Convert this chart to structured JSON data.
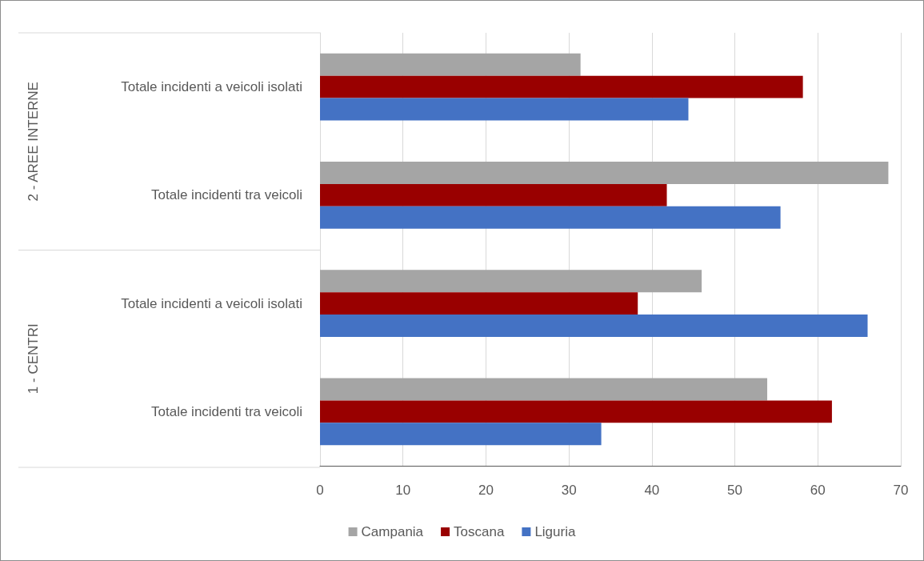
{
  "chart_data": {
    "type": "bar",
    "orientation": "horizontal",
    "categories": [
      "Totale incidenti a veicoli isolati",
      "Totale incidenti tra veicoli",
      "Totale incidenti a veicoli isolati",
      "Totale incidenti tra veicoli"
    ],
    "series": [
      {
        "name": "Campania",
        "color": "#a5a5a5",
        "values": [
          31.4,
          68.5,
          46.0,
          53.9
        ]
      },
      {
        "name": "Toscana",
        "color": "#990000",
        "values": [
          58.2,
          41.8,
          38.3,
          61.7
        ]
      },
      {
        "name": "Liguria",
        "color": "#4472c4",
        "values": [
          44.4,
          55.5,
          66.0,
          33.9
        ]
      }
    ],
    "annotations": [
      "2 - AREE INTERNE",
      "1 - CENTRI"
    ],
    "xlim": [
      0,
      70
    ],
    "xticks": [
      0,
      10,
      20,
      30,
      40,
      50,
      60,
      70
    ],
    "grid": "x",
    "legend": "bottom"
  }
}
